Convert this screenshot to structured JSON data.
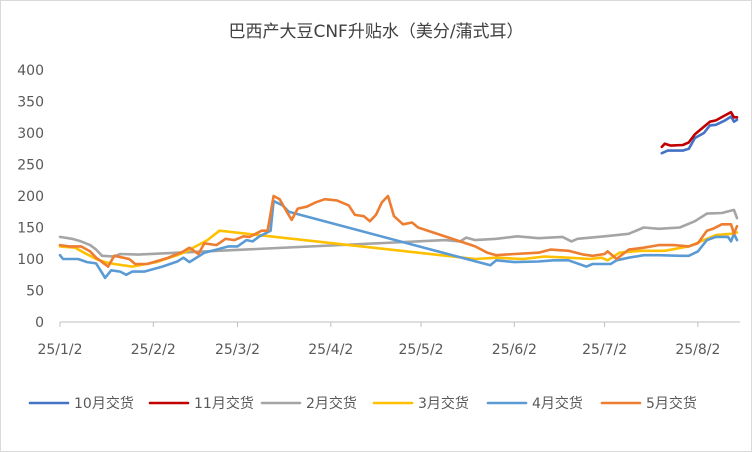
{
  "chart_data": {
    "type": "line",
    "title": "巴西产大豆CNF升贴水（美分/蒲式耳）",
    "xlabel": "",
    "ylabel": "",
    "ylim": [
      0,
      400
    ],
    "yticks": [
      0,
      50,
      100,
      150,
      200,
      250,
      300,
      350,
      400
    ],
    "xlim": [
      "2025-01-02",
      "2025-08-16"
    ],
    "xtick_labels": [
      "25/1/2",
      "25/2/2",
      "25/3/2",
      "25/4/2",
      "25/5/2",
      "25/6/2",
      "25/7/2",
      "25/8/2"
    ],
    "xtick_dates": [
      "2025-01-02",
      "2025-02-02",
      "2025-03-02",
      "2025-04-02",
      "2025-05-02",
      "2025-06-02",
      "2025-07-02",
      "2025-08-02"
    ],
    "grid": "none",
    "legend_position": "bottom",
    "series": [
      {
        "name": "10月交货",
        "color": "#4472C4",
        "points": [
          [
            "2025-07-21",
            268
          ],
          [
            "2025-07-23",
            272
          ],
          [
            "2025-07-25",
            272
          ],
          [
            "2025-07-28",
            272
          ],
          [
            "2025-07-30",
            275
          ],
          [
            "2025-08-01",
            292
          ],
          [
            "2025-08-04",
            300
          ],
          [
            "2025-08-06",
            312
          ],
          [
            "2025-08-08",
            313
          ],
          [
            "2025-08-11",
            320
          ],
          [
            "2025-08-13",
            326
          ],
          [
            "2025-08-14",
            318
          ],
          [
            "2025-08-15",
            321
          ]
        ]
      },
      {
        "name": "11月交货",
        "color": "#C00000",
        "points": [
          [
            "2025-07-21",
            278
          ],
          [
            "2025-07-22",
            283
          ],
          [
            "2025-07-24",
            280
          ],
          [
            "2025-07-28",
            281
          ],
          [
            "2025-07-30",
            285
          ],
          [
            "2025-08-01",
            298
          ],
          [
            "2025-08-04",
            310
          ],
          [
            "2025-08-06",
            318
          ],
          [
            "2025-08-08",
            320
          ],
          [
            "2025-08-11",
            328
          ],
          [
            "2025-08-13",
            333
          ],
          [
            "2025-08-14",
            325
          ],
          [
            "2025-08-15",
            325
          ]
        ]
      },
      {
        "name": "2月交货",
        "color": "#A5A5A5",
        "points": [
          [
            "2025-01-02",
            135
          ],
          [
            "2025-01-06",
            132
          ],
          [
            "2025-01-09",
            128
          ],
          [
            "2025-01-12",
            122
          ],
          [
            "2025-01-14",
            115
          ],
          [
            "2025-01-16",
            105
          ],
          [
            "2025-01-20",
            104
          ],
          [
            "2025-01-22",
            108
          ],
          [
            "2025-01-28",
            107
          ],
          [
            "2025-05-10",
            130
          ],
          [
            "2025-05-15",
            128
          ],
          [
            "2025-05-17",
            134
          ],
          [
            "2025-05-20",
            130
          ],
          [
            "2025-05-27",
            132
          ],
          [
            "2025-06-03",
            136
          ],
          [
            "2025-06-10",
            133
          ],
          [
            "2025-06-18",
            135
          ],
          [
            "2025-06-21",
            128
          ],
          [
            "2025-06-23",
            132
          ],
          [
            "2025-07-02",
            136
          ],
          [
            "2025-07-10",
            140
          ],
          [
            "2025-07-15",
            150
          ],
          [
            "2025-07-20",
            148
          ],
          [
            "2025-07-27",
            150
          ],
          [
            "2025-08-01",
            160
          ],
          [
            "2025-08-05",
            172
          ],
          [
            "2025-08-10",
            173
          ],
          [
            "2025-08-14",
            178
          ],
          [
            "2025-08-15",
            165
          ]
        ]
      },
      {
        "name": "3月交货",
        "color": "#FFC000",
        "points": [
          [
            "2025-01-02",
            120
          ],
          [
            "2025-01-07",
            118
          ],
          [
            "2025-01-10",
            110
          ],
          [
            "2025-01-14",
            100
          ],
          [
            "2025-01-17",
            95
          ],
          [
            "2025-01-20",
            92
          ],
          [
            "2025-01-23",
            90
          ],
          [
            "2025-01-26",
            88
          ],
          [
            "2025-02-03",
            95
          ],
          [
            "2025-02-10",
            106
          ],
          [
            "2025-02-13",
            112
          ],
          [
            "2025-02-20",
            130
          ],
          [
            "2025-02-24",
            145
          ],
          [
            "2025-05-20",
            100
          ],
          [
            "2025-05-27",
            102
          ],
          [
            "2025-06-05",
            100
          ],
          [
            "2025-06-12",
            104
          ],
          [
            "2025-06-20",
            102
          ],
          [
            "2025-06-27",
            100
          ],
          [
            "2025-07-01",
            102
          ],
          [
            "2025-07-03",
            98
          ],
          [
            "2025-07-07",
            110
          ],
          [
            "2025-07-14",
            113
          ],
          [
            "2025-07-22",
            113
          ],
          [
            "2025-07-30",
            120
          ],
          [
            "2025-08-04",
            130
          ],
          [
            "2025-08-08",
            138
          ],
          [
            "2025-08-13",
            140
          ],
          [
            "2025-08-15",
            142
          ]
        ]
      },
      {
        "name": "4月交货",
        "color": "#5B9BD5",
        "points": [
          [
            "2025-01-02",
            106
          ],
          [
            "2025-01-03",
            100
          ],
          [
            "2025-01-08",
            100
          ],
          [
            "2025-01-11",
            95
          ],
          [
            "2025-01-14",
            93
          ],
          [
            "2025-01-16",
            78
          ],
          [
            "2025-01-17",
            70
          ],
          [
            "2025-01-19",
            82
          ],
          [
            "2025-01-22",
            80
          ],
          [
            "2025-01-24",
            75
          ],
          [
            "2025-01-26",
            80
          ],
          [
            "2025-01-30",
            80
          ],
          [
            "2025-02-05",
            88
          ],
          [
            "2025-02-10",
            96
          ],
          [
            "2025-02-12",
            102
          ],
          [
            "2025-02-14",
            95
          ],
          [
            "2025-02-17",
            104
          ],
          [
            "2025-02-19",
            110
          ],
          [
            "2025-02-23",
            115
          ],
          [
            "2025-02-27",
            120
          ],
          [
            "2025-03-02",
            120
          ],
          [
            "2025-03-05",
            130
          ],
          [
            "2025-03-07",
            128
          ],
          [
            "2025-03-09",
            135
          ],
          [
            "2025-03-11",
            140
          ],
          [
            "2025-03-13",
            145
          ],
          [
            "2025-03-14",
            192
          ],
          [
            "2025-03-17",
            185
          ],
          [
            "2025-03-19",
            175
          ],
          [
            "2025-05-25",
            90
          ],
          [
            "2025-05-27",
            98
          ],
          [
            "2025-06-02",
            95
          ],
          [
            "2025-06-10",
            96
          ],
          [
            "2025-06-15",
            98
          ],
          [
            "2025-06-20",
            98
          ],
          [
            "2025-06-26",
            88
          ],
          [
            "2025-06-28",
            92
          ],
          [
            "2025-07-04",
            92
          ],
          [
            "2025-07-06",
            98
          ],
          [
            "2025-07-10",
            102
          ],
          [
            "2025-07-15",
            106
          ],
          [
            "2025-07-20",
            106
          ],
          [
            "2025-07-27",
            105
          ],
          [
            "2025-07-30",
            105
          ],
          [
            "2025-08-02",
            112
          ],
          [
            "2025-08-05",
            130
          ],
          [
            "2025-08-08",
            135
          ],
          [
            "2025-08-12",
            135
          ],
          [
            "2025-08-13",
            128
          ],
          [
            "2025-08-14",
            140
          ],
          [
            "2025-08-15",
            130
          ]
        ]
      },
      {
        "name": "5月交货",
        "color": "#ED7D31",
        "points": [
          [
            "2025-01-02",
            122
          ],
          [
            "2025-01-05",
            120
          ],
          [
            "2025-01-09",
            120
          ],
          [
            "2025-01-12",
            112
          ],
          [
            "2025-01-14",
            102
          ],
          [
            "2025-01-16",
            95
          ],
          [
            "2025-01-18",
            88
          ],
          [
            "2025-01-20",
            105
          ],
          [
            "2025-01-23",
            102
          ],
          [
            "2025-01-25",
            100
          ],
          [
            "2025-01-27",
            92
          ],
          [
            "2025-01-31",
            92
          ],
          [
            "2025-02-07",
            102
          ],
          [
            "2025-02-12",
            112
          ],
          [
            "2025-02-14",
            118
          ],
          [
            "2025-02-17",
            108
          ],
          [
            "2025-02-19",
            125
          ],
          [
            "2025-02-23",
            122
          ],
          [
            "2025-02-26",
            132
          ],
          [
            "2025-03-01",
            130
          ],
          [
            "2025-03-04",
            136
          ],
          [
            "2025-03-06",
            135
          ],
          [
            "2025-03-08",
            140
          ],
          [
            "2025-03-10",
            145
          ],
          [
            "2025-03-12",
            145
          ],
          [
            "2025-03-14",
            200
          ],
          [
            "2025-03-16",
            195
          ],
          [
            "2025-03-18",
            178
          ],
          [
            "2025-03-20",
            162
          ],
          [
            "2025-03-22",
            180
          ],
          [
            "2025-03-25",
            183
          ],
          [
            "2025-03-28",
            190
          ],
          [
            "2025-03-31",
            195
          ],
          [
            "2025-04-04",
            193
          ],
          [
            "2025-04-08",
            185
          ],
          [
            "2025-04-10",
            170
          ],
          [
            "2025-04-13",
            168
          ],
          [
            "2025-04-15",
            160
          ],
          [
            "2025-04-17",
            170
          ],
          [
            "2025-04-19",
            190
          ],
          [
            "2025-04-21",
            200
          ],
          [
            "2025-04-23",
            168
          ],
          [
            "2025-04-26",
            155
          ],
          [
            "2025-04-29",
            158
          ],
          [
            "2025-05-01",
            150
          ],
          [
            "2025-05-20",
            120
          ],
          [
            "2025-05-24",
            110
          ],
          [
            "2025-05-27",
            106
          ],
          [
            "2025-06-02",
            108
          ],
          [
            "2025-06-10",
            110
          ],
          [
            "2025-06-14",
            115
          ],
          [
            "2025-06-20",
            113
          ],
          [
            "2025-06-25",
            107
          ],
          [
            "2025-06-28",
            105
          ],
          [
            "2025-07-02",
            108
          ],
          [
            "2025-07-03",
            112
          ],
          [
            "2025-07-06",
            100
          ],
          [
            "2025-07-10",
            115
          ],
          [
            "2025-07-15",
            118
          ],
          [
            "2025-07-20",
            122
          ],
          [
            "2025-07-25",
            122
          ],
          [
            "2025-07-30",
            120
          ],
          [
            "2025-08-02",
            125
          ],
          [
            "2025-08-05",
            145
          ],
          [
            "2025-08-07",
            148
          ],
          [
            "2025-08-10",
            155
          ],
          [
            "2025-08-13",
            155
          ],
          [
            "2025-08-14",
            140
          ],
          [
            "2025-08-15",
            152
          ]
        ]
      }
    ]
  }
}
